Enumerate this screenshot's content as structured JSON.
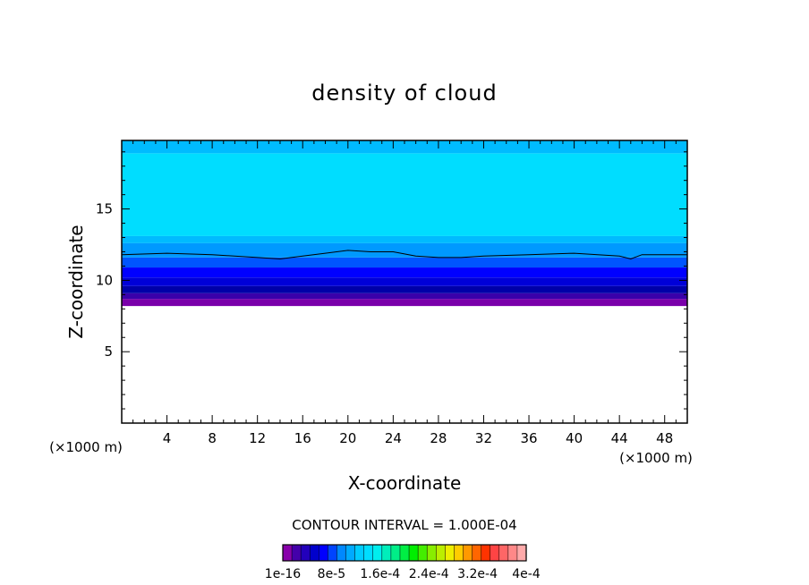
{
  "chart_data": {
    "type": "contour",
    "title": "density of cloud",
    "xlabel": "X-coordinate",
    "ylabel": "Z-coordinate",
    "x_unit_label": "(×1000 m)",
    "z_unit_label": "(×1000 m)",
    "xlim": [
      0,
      50
    ],
    "ylim": [
      0,
      19.8
    ],
    "x_ticks": [
      "4",
      "8",
      "12",
      "16",
      "20",
      "24",
      "28",
      "32",
      "36",
      "40",
      "44",
      "48"
    ],
    "y_ticks": [
      "5",
      "10",
      "15"
    ],
    "contour_interval_label": "CONTOUR INTERVAL = 1.000E-04",
    "colorbar_labels": [
      "1e-16",
      "8e-5",
      "1.6e-4",
      "2.4e-4",
      "3.2e-4",
      "4e-4"
    ],
    "colorbar_colors": [
      "#8800aa",
      "#4400aa",
      "#2200bb",
      "#0000cc",
      "#0000ff",
      "#0044ff",
      "#0088ff",
      "#00aaff",
      "#00ccff",
      "#00ddff",
      "#00eeee",
      "#00eebb",
      "#00ee88",
      "#00ee44",
      "#00ee00",
      "#44ee00",
      "#88ee00",
      "#bbee00",
      "#eeee00",
      "#ffcc00",
      "#ff9900",
      "#ff6600",
      "#ff3300",
      "#ff4444",
      "#ff6666",
      "#ff8888",
      "#ffaaaa"
    ],
    "cloud_layers": [
      {
        "z_bottom": 8.2,
        "z_top": 8.7,
        "color": "#7a00aa"
      },
      {
        "z_bottom": 8.7,
        "z_top": 9.1,
        "color": "#3a00aa"
      },
      {
        "z_bottom": 9.1,
        "z_top": 9.6,
        "color": "#0000a8"
      },
      {
        "z_bottom": 9.6,
        "z_top": 10.2,
        "color": "#0000d8"
      },
      {
        "z_bottom": 10.2,
        "z_top": 10.9,
        "color": "#0000ff"
      },
      {
        "z_bottom": 10.9,
        "z_top": 11.6,
        "color": "#0055ff"
      },
      {
        "z_bottom": 11.6,
        "z_top": 12.6,
        "color": "#0099ff"
      },
      {
        "z_bottom": 12.6,
        "z_top": 13.1,
        "color": "#00bbff"
      },
      {
        "z_bottom": 13.1,
        "z_top": 18.9,
        "color": "#00ddff"
      },
      {
        "z_bottom": 18.9,
        "z_top": 19.8,
        "color": "#00bbff"
      }
    ],
    "contour_line": {
      "level": "1e-16",
      "x": [
        0,
        4,
        8,
        12,
        14,
        16,
        18,
        20,
        22,
        24,
        26,
        28,
        30,
        32,
        36,
        40,
        44,
        45,
        46,
        50
      ],
      "z": [
        11.8,
        11.9,
        11.8,
        11.6,
        11.5,
        11.7,
        11.9,
        12.1,
        12.0,
        12.0,
        11.7,
        11.6,
        11.6,
        11.7,
        11.8,
        11.9,
        11.7,
        11.5,
        11.8,
        11.8
      ]
    }
  }
}
